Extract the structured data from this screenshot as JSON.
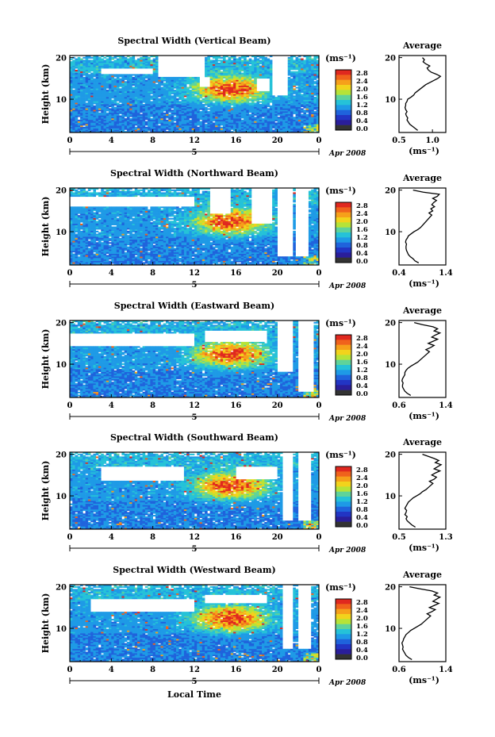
{
  "figure": {
    "xlabel": "Local Time",
    "date_label": "Apr 2008",
    "day_label": "5",
    "colorbar_unit": "(ms⁻¹)",
    "colorbar_ticks": [
      "2.8",
      "2.4",
      "2.0",
      "1.6",
      "1.2",
      "0.8",
      "0.4",
      "0.0"
    ],
    "colorbar_colors": [
      "#e0281f",
      "#f0621c",
      "#f6a01a",
      "#f2d31c",
      "#b6e338",
      "#5fd39a",
      "#25c2d8",
      "#1e9ae6",
      "#1f63dc",
      "#2235c4",
      "#2a1e9a",
      "#333333"
    ],
    "ylabel": "Height (km)",
    "avg_title": "Average",
    "avg_unit": "(ms⁻¹)"
  },
  "chart_data": [
    {
      "type": "heatmap",
      "title": "Spectral Width (Vertical Beam)",
      "xlabel": "Local Time",
      "ylabel": "Height (km)",
      "x_ticks": [
        "0",
        "4",
        "8",
        "12",
        "16",
        "20",
        "0"
      ],
      "y_ticks": [
        "20",
        "10"
      ],
      "xlim": [
        0,
        24
      ],
      "ylim": [
        2,
        20.5
      ],
      "colorbar_label": "(ms⁻¹)",
      "colorbar_range": [
        0.0,
        3.0
      ],
      "average": {
        "title": "Average",
        "xlabel": "(ms⁻¹)",
        "x_ticks": [
          "0.5",
          "1.0"
        ],
        "y_ticks": [
          "20",
          "10"
        ],
        "xlim": [
          0.5,
          1.2
        ],
        "profile_heights": [
          2.5,
          3,
          3.5,
          4,
          4.5,
          5,
          5.5,
          6,
          6.5,
          7,
          7.5,
          8,
          8.5,
          9,
          9.5,
          10,
          10.5,
          11,
          11.5,
          12,
          12.5,
          13,
          13.5,
          14,
          14.5,
          15,
          15.5,
          16,
          16.5,
          17,
          17.5,
          18,
          18.5,
          19,
          19.5,
          20
        ],
        "profile_values": [
          0.78,
          0.74,
          0.7,
          0.66,
          0.64,
          0.62,
          0.63,
          0.61,
          0.6,
          0.62,
          0.6,
          0.59,
          0.6,
          0.6,
          0.62,
          0.63,
          0.68,
          0.72,
          0.74,
          0.78,
          0.82,
          0.86,
          0.9,
          0.96,
          1.02,
          1.08,
          1.12,
          1.06,
          0.98,
          0.94,
          0.92,
          0.96,
          0.9,
          0.86,
          0.88,
          0.85
        ]
      }
    },
    {
      "type": "heatmap",
      "title": "Spectral Width (Northward Beam)",
      "xlabel": "Local Time",
      "ylabel": "Height (km)",
      "x_ticks": [
        "0",
        "4",
        "8",
        "12",
        "16",
        "20",
        "0"
      ],
      "y_ticks": [
        "20",
        "10"
      ],
      "xlim": [
        0,
        24
      ],
      "ylim": [
        2,
        20.5
      ],
      "colorbar_label": "(ms⁻¹)",
      "colorbar_range": [
        0.0,
        3.0
      ],
      "average": {
        "title": "Average",
        "xlabel": "(ms⁻¹)",
        "x_ticks": [
          "0.4",
          "1.4"
        ],
        "y_ticks": [
          "20",
          "10"
        ],
        "xlim": [
          0.4,
          1.4
        ],
        "profile_heights": [
          2.5,
          3,
          3.5,
          4,
          4.5,
          5,
          5.5,
          6,
          6.5,
          7,
          7.5,
          8,
          8.5,
          9,
          9.5,
          10,
          10.5,
          11,
          11.5,
          12,
          12.5,
          13,
          13.5,
          14,
          14.5,
          15,
          15.5,
          16,
          16.5,
          17,
          17.5,
          18,
          18.5,
          19,
          19.5,
          20
        ],
        "profile_values": [
          0.82,
          0.74,
          0.7,
          0.64,
          0.6,
          0.58,
          0.56,
          0.55,
          0.55,
          0.56,
          0.54,
          0.55,
          0.58,
          0.6,
          0.66,
          0.72,
          0.8,
          0.86,
          0.9,
          0.94,
          0.98,
          1.02,
          1.06,
          1.1,
          1.04,
          1.12,
          1.08,
          1.16,
          1.1,
          1.14,
          1.2,
          1.12,
          1.22,
          1.26,
          0.92,
          0.7
        ]
      }
    },
    {
      "type": "heatmap",
      "title": "Spectral Width (Eastward Beam)",
      "xlabel": "Local Time",
      "ylabel": "Height (km)",
      "x_ticks": [
        "0",
        "4",
        "8",
        "12",
        "16",
        "20",
        "0"
      ],
      "y_ticks": [
        "20",
        "10"
      ],
      "xlim": [
        0,
        24
      ],
      "ylim": [
        2,
        20.5
      ],
      "colorbar_label": "(ms⁻¹)",
      "colorbar_range": [
        0.0,
        3.0
      ],
      "average": {
        "title": "Average",
        "xlabel": "(ms⁻¹)",
        "x_ticks": [
          "0.6",
          "1.4"
        ],
        "y_ticks": [
          "20",
          "10"
        ],
        "xlim": [
          0.6,
          1.4
        ],
        "profile_heights": [
          2.5,
          3,
          3.5,
          4,
          4.5,
          5,
          5.5,
          6,
          6.5,
          7,
          7.5,
          8,
          8.5,
          9,
          9.5,
          10,
          10.5,
          11,
          11.5,
          12,
          12.5,
          13,
          13.5,
          14,
          14.5,
          15,
          15.5,
          16,
          16.5,
          17,
          17.5,
          18,
          18.5,
          19,
          19.5,
          20
        ],
        "profile_values": [
          0.8,
          0.74,
          0.7,
          0.68,
          0.66,
          0.66,
          0.67,
          0.65,
          0.66,
          0.68,
          0.7,
          0.7,
          0.72,
          0.75,
          0.8,
          0.86,
          0.92,
          0.96,
          1.0,
          1.04,
          1.08,
          1.12,
          1.06,
          1.14,
          1.2,
          1.1,
          1.18,
          1.26,
          1.16,
          1.22,
          1.3,
          1.2,
          1.26,
          1.18,
          1.0,
          0.86
        ]
      }
    },
    {
      "type": "heatmap",
      "title": "Spectral Width (Southward Beam)",
      "xlabel": "Local Time",
      "ylabel": "Height (km)",
      "x_ticks": [
        "0",
        "4",
        "8",
        "12",
        "16",
        "20",
        "0"
      ],
      "y_ticks": [
        "20",
        "10"
      ],
      "xlim": [
        0,
        24
      ],
      "ylim": [
        2,
        20.5
      ],
      "colorbar_label": "(ms⁻¹)",
      "colorbar_range": [
        0.0,
        3.0
      ],
      "average": {
        "title": "Average",
        "xlabel": "(ms⁻¹)",
        "x_ticks": [
          "0.5",
          "1.3"
        ],
        "y_ticks": [
          "20",
          "10"
        ],
        "xlim": [
          0.5,
          1.3
        ],
        "profile_heights": [
          2.5,
          3,
          3.5,
          4,
          4.5,
          5,
          5.5,
          6,
          6.5,
          7,
          7.5,
          8,
          8.5,
          9,
          9.5,
          10,
          10.5,
          11,
          11.5,
          12,
          12.5,
          13,
          13.5,
          14,
          14.5,
          15,
          15.5,
          16,
          16.5,
          17,
          17.5,
          18,
          18.5,
          19,
          19.5,
          20
        ],
        "profile_values": [
          0.78,
          0.72,
          0.68,
          0.64,
          0.62,
          0.64,
          0.6,
          0.62,
          0.63,
          0.6,
          0.62,
          0.64,
          0.66,
          0.7,
          0.74,
          0.8,
          0.86,
          0.9,
          0.96,
          1.0,
          1.04,
          1.08,
          1.02,
          1.1,
          1.14,
          1.06,
          1.12,
          1.2,
          1.1,
          1.16,
          1.22,
          1.12,
          1.18,
          1.1,
          1.0,
          0.9
        ]
      }
    },
    {
      "type": "heatmap",
      "title": "Spectral Width (Westward Beam)",
      "xlabel": "Local Time",
      "ylabel": "Height (km)",
      "x_ticks": [
        "0",
        "4",
        "8",
        "12",
        "16",
        "20",
        "0"
      ],
      "y_ticks": [
        "20",
        "10"
      ],
      "xlim": [
        0,
        24
      ],
      "ylim": [
        2,
        20.5
      ],
      "colorbar_label": "(ms⁻¹)",
      "colorbar_range": [
        0.0,
        3.0
      ],
      "average": {
        "title": "Average",
        "xlabel": "(ms⁻¹)",
        "x_ticks": [
          "0.6",
          "1.4"
        ],
        "y_ticks": [
          "20",
          "10"
        ],
        "xlim": [
          0.6,
          1.4
        ],
        "profile_heights": [
          2.5,
          3,
          3.5,
          4,
          4.5,
          5,
          5.5,
          6,
          6.5,
          7,
          7.5,
          8,
          8.5,
          9,
          9.5,
          10,
          10.5,
          11,
          11.5,
          12,
          12.5,
          13,
          13.5,
          14,
          14.5,
          15,
          15.5,
          16,
          16.5,
          17,
          17.5,
          18,
          18.5,
          19,
          19.5,
          20
        ],
        "profile_values": [
          0.82,
          0.76,
          0.72,
          0.7,
          0.68,
          0.66,
          0.67,
          0.66,
          0.65,
          0.67,
          0.68,
          0.7,
          0.72,
          0.76,
          0.8,
          0.86,
          0.92,
          0.98,
          1.02,
          1.06,
          1.1,
          1.14,
          1.08,
          1.16,
          1.22,
          1.12,
          1.2,
          1.28,
          1.18,
          1.24,
          1.3,
          1.2,
          1.26,
          1.16,
          0.96,
          0.78
        ]
      }
    }
  ]
}
